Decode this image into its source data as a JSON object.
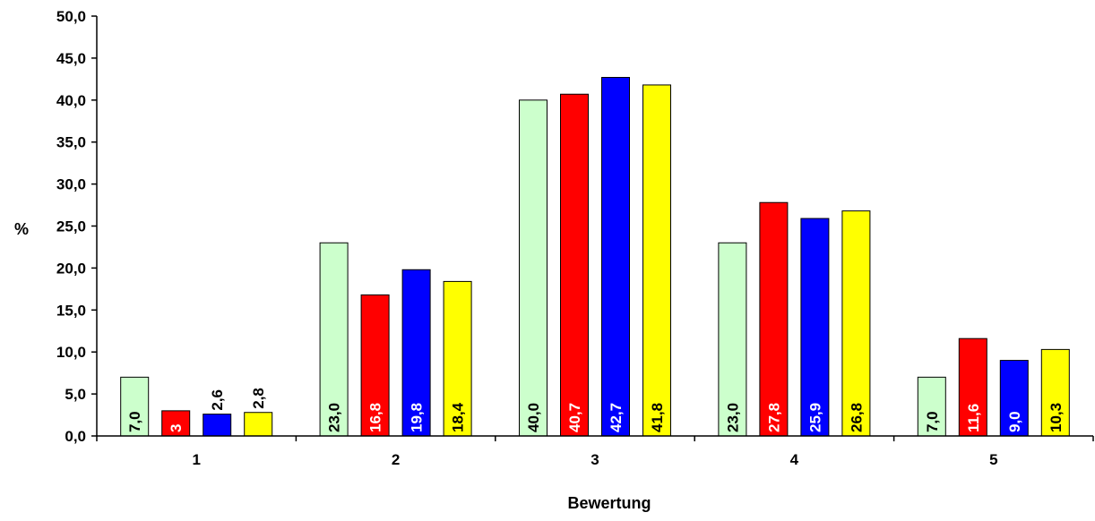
{
  "chart_data": {
    "type": "bar",
    "title": "",
    "xlabel": "Bewertung",
    "ylabel": "%",
    "categories": [
      "1",
      "2",
      "3",
      "4",
      "5"
    ],
    "ylim": [
      0,
      50
    ],
    "yticks": [
      0,
      5,
      10,
      15,
      20,
      25,
      30,
      35,
      40,
      45,
      50
    ],
    "ytick_labels": [
      "0,0",
      "5,0",
      "10,0",
      "15,0",
      "20,0",
      "25,0",
      "30,0",
      "35,0",
      "40,0",
      "45,0",
      "50,0"
    ],
    "grid": false,
    "legend": "none",
    "series": [
      {
        "color": "#ccffcc",
        "label_color": "#000000",
        "values": [
          7.0,
          23.0,
          40.0,
          23.0,
          7.0
        ],
        "labels": [
          "7,0",
          "23,0",
          "40,0",
          "23,0",
          "7,0"
        ]
      },
      {
        "color": "#ff0000",
        "label_color": "#ffffff",
        "values": [
          3.0,
          16.8,
          40.7,
          27.8,
          11.6
        ],
        "labels": [
          "3",
          "16,8",
          "40,7",
          "27,8",
          "11,6"
        ]
      },
      {
        "color": "#0000ff",
        "label_color": "#ffffff",
        "values": [
          2.6,
          19.8,
          42.7,
          25.9,
          9.0
        ],
        "labels": [
          "2,6",
          "19,8",
          "42,7",
          "25,9",
          "9,0"
        ]
      },
      {
        "color": "#ffff00",
        "label_color": "#000000",
        "values": [
          2.8,
          18.4,
          41.8,
          26.8,
          10.3
        ],
        "labels": [
          "2,8",
          "18,4",
          "41,8",
          "26,8",
          "10,3"
        ]
      }
    ]
  }
}
